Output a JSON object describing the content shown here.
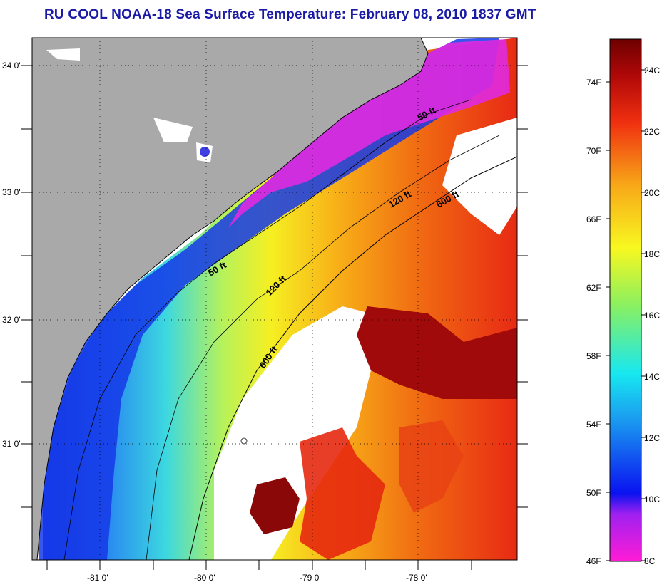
{
  "title": "RU COOL  NOAA-18  Sea Surface Temperature:  February 08, 2010 1837 GMT",
  "map": {
    "lat_labels": [
      "34 0'",
      "33 0'",
      "32 0'",
      "31 0'"
    ],
    "lon_labels": [
      "-81 0'",
      "-80 0'",
      "-79 0'",
      "-78 0'"
    ],
    "depth_labels": [
      "50 ft",
      "50 ft",
      "120 ft",
      "120 ft",
      "600 ft",
      "600 ft"
    ]
  },
  "colorbar": {
    "fahrenheit": [
      "74F",
      "70F",
      "66F",
      "62F",
      "58F",
      "54F",
      "50F",
      "46F"
    ],
    "celsius": [
      "24C",
      "22C",
      "20C",
      "18C",
      "16C",
      "14C",
      "12C",
      "10C",
      "8C"
    ],
    "range_f": [
      46,
      77
    ],
    "range_c": [
      8,
      25
    ]
  },
  "colors": {
    "land": "#a9a9a9",
    "title": "#1a1aa6",
    "frame": "#000000"
  }
}
